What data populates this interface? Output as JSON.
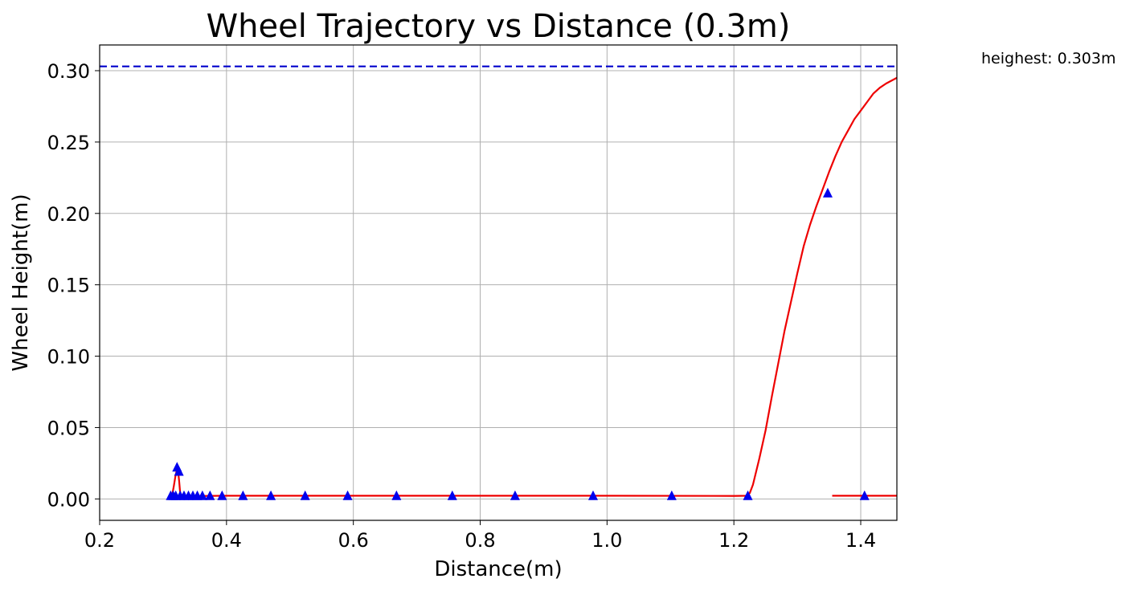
{
  "chart_data": {
    "type": "line",
    "title": "Wheel Trajectory vs Distance (0.3m)",
    "xlabel": "Distance(m)",
    "ylabel": "Wheel Height(m)",
    "xlim": [
      0.2,
      1.457
    ],
    "ylim": [
      -0.015,
      0.318
    ],
    "grid": true,
    "x_ticks": [
      "0.2",
      "0.4",
      "0.6",
      "0.8",
      "1.0",
      "1.2",
      "1.4"
    ],
    "y_ticks": [
      "0.00",
      "0.05",
      "0.10",
      "0.15",
      "0.20",
      "0.25",
      "0.30"
    ],
    "reference_line": {
      "y": 0.303,
      "style": "dashed",
      "color": "#0000cc"
    },
    "annotation": "heighest: 0.303m",
    "series": [
      {
        "style": "line",
        "color": "#ee0000",
        "segments": [
          [
            [
              0.311,
              0.001
            ],
            [
              0.314,
              0.002
            ],
            [
              0.317,
              0.009
            ],
            [
              0.3195,
              0.016
            ],
            [
              0.321,
              0.019
            ],
            [
              0.3225,
              0.02
            ],
            [
              0.324,
              0.018
            ],
            [
              0.3255,
              0.012
            ],
            [
              0.327,
              0.004
            ],
            [
              0.328,
              0.002
            ]
          ],
          [
            [
              0.328,
              0.002
            ],
            [
              0.4,
              0.0022
            ],
            [
              0.6,
              0.0022
            ],
            [
              0.8,
              0.0022
            ],
            [
              1.0,
              0.0022
            ],
            [
              1.2,
              0.0021
            ],
            [
              1.22,
              0.0022
            ],
            [
              1.225,
              0.004
            ],
            [
              1.23,
              0.01
            ],
            [
              1.24,
              0.028
            ],
            [
              1.25,
              0.048
            ],
            [
              1.26,
              0.072
            ],
            [
              1.27,
              0.095
            ],
            [
              1.28,
              0.118
            ],
            [
              1.29,
              0.138
            ],
            [
              1.3,
              0.158
            ],
            [
              1.31,
              0.177
            ],
            [
              1.32,
              0.192
            ],
            [
              1.33,
              0.205
            ],
            [
              1.34,
              0.217
            ],
            [
              1.35,
              0.229
            ],
            [
              1.36,
              0.24
            ],
            [
              1.37,
              0.25
            ],
            [
              1.38,
              0.258
            ],
            [
              1.39,
              0.266
            ],
            [
              1.4,
              0.272
            ],
            [
              1.41,
              0.278
            ],
            [
              1.42,
              0.284
            ],
            [
              1.43,
              0.288
            ],
            [
              1.44,
              0.291
            ],
            [
              1.457,
              0.295
            ]
          ],
          [
            [
              1.355,
              0.0022
            ],
            [
              1.457,
              0.0022
            ]
          ]
        ]
      },
      {
        "style": "triangle-markers",
        "color": "#0000ee",
        "points": [
          [
            0.312,
            0.002
          ],
          [
            0.316,
            0.002
          ],
          [
            0.32,
            0.002
          ],
          [
            0.322,
            0.022
          ],
          [
            0.325,
            0.019
          ],
          [
            0.327,
            0.002
          ],
          [
            0.333,
            0.002
          ],
          [
            0.34,
            0.002
          ],
          [
            0.347,
            0.002
          ],
          [
            0.354,
            0.002
          ],
          [
            0.362,
            0.002
          ],
          [
            0.374,
            0.002
          ],
          [
            0.393,
            0.002
          ],
          [
            0.426,
            0.002
          ],
          [
            0.47,
            0.002
          ],
          [
            0.524,
            0.002
          ],
          [
            0.591,
            0.002
          ],
          [
            0.668,
            0.002
          ],
          [
            0.756,
            0.002
          ],
          [
            0.855,
            0.002
          ],
          [
            0.978,
            0.002
          ],
          [
            1.102,
            0.002
          ],
          [
            1.222,
            0.002
          ],
          [
            1.348,
            0.214
          ],
          [
            1.406,
            0.002
          ]
        ]
      }
    ]
  }
}
